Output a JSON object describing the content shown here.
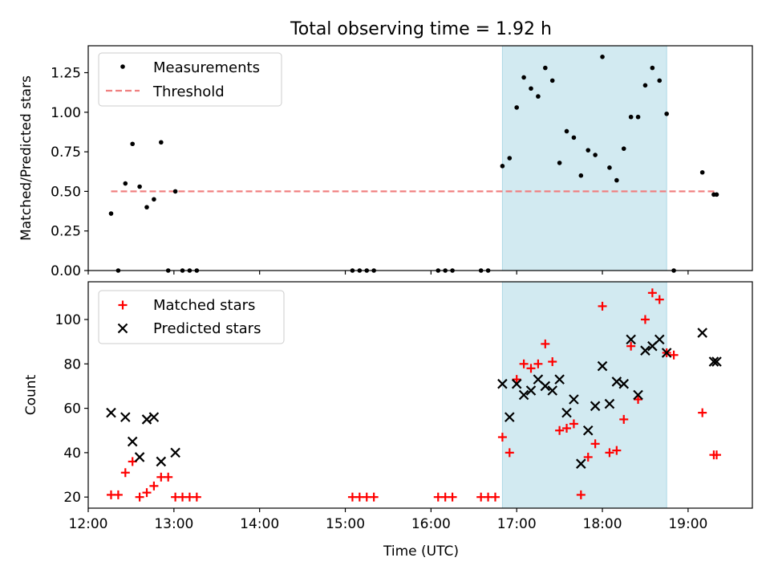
{
  "chart_data": [
    {
      "type": "scatter",
      "title": "Total observing time = 1.92 h",
      "xlabel": "",
      "ylabel": "Matched/Predicted stars",
      "xlim": [
        "12:00",
        "19:45"
      ],
      "ylim": [
        0,
        1.42
      ],
      "yticks": [
        "0.00",
        "0.25",
        "0.50",
        "0.75",
        "1.00",
        "1.25"
      ],
      "grid": false,
      "legend": "top-left",
      "shaded_span": {
        "x_start": "16:50",
        "x_end": "18:45",
        "color": "#add8e6"
      },
      "series": [
        {
          "name": "Measurements",
          "marker": "dot",
          "color": "#000000",
          "points": [
            [
              "12:16",
              0.36
            ],
            [
              "12:21",
              0.0
            ],
            [
              "12:26",
              0.55
            ],
            [
              "12:31",
              0.8
            ],
            [
              "12:36",
              0.53
            ],
            [
              "12:41",
              0.4
            ],
            [
              "12:46",
              0.45
            ],
            [
              "12:51",
              0.81
            ],
            [
              "12:56",
              0.0
            ],
            [
              "13:01",
              0.5
            ],
            [
              "13:06",
              0.0
            ],
            [
              "13:11",
              0.0
            ],
            [
              "13:16",
              0.0
            ],
            [
              "15:05",
              0.0
            ],
            [
              "15:10",
              0.0
            ],
            [
              "15:15",
              0.0
            ],
            [
              "15:20",
              0.0
            ],
            [
              "16:05",
              0.0
            ],
            [
              "16:10",
              0.0
            ],
            [
              "16:15",
              0.0
            ],
            [
              "16:35",
              0.0
            ],
            [
              "16:40",
              0.0
            ],
            [
              "16:50",
              0.66
            ],
            [
              "16:55",
              0.71
            ],
            [
              "17:00",
              1.03
            ],
            [
              "17:05",
              1.22
            ],
            [
              "17:10",
              1.15
            ],
            [
              "17:15",
              1.1
            ],
            [
              "17:20",
              1.28
            ],
            [
              "17:25",
              1.2
            ],
            [
              "17:30",
              0.68
            ],
            [
              "17:35",
              0.88
            ],
            [
              "17:40",
              0.84
            ],
            [
              "17:45",
              0.6
            ],
            [
              "17:50",
              0.76
            ],
            [
              "17:55",
              0.73
            ],
            [
              "18:00",
              1.35
            ],
            [
              "18:05",
              0.65
            ],
            [
              "18:10",
              0.57
            ],
            [
              "18:15",
              0.77
            ],
            [
              "18:20",
              0.97
            ],
            [
              "18:25",
              0.97
            ],
            [
              "18:30",
              1.17
            ],
            [
              "18:35",
              1.28
            ],
            [
              "18:40",
              1.2
            ],
            [
              "18:45",
              0.99
            ],
            [
              "18:50",
              0.0
            ],
            [
              "19:10",
              0.62
            ],
            [
              "19:18",
              0.48
            ],
            [
              "19:20",
              0.48
            ]
          ]
        },
        {
          "name": "Threshold",
          "marker": "dashed-line",
          "color": "#f08080",
          "points": [
            [
              "12:16",
              0.5
            ],
            [
              "19:20",
              0.5
            ]
          ]
        }
      ]
    },
    {
      "type": "scatter",
      "title": "",
      "xlabel": "Time (UTC)",
      "ylabel": "Count",
      "xlim": [
        "12:00",
        "19:45"
      ],
      "ylim": [
        15,
        117
      ],
      "yticks": [
        "20",
        "40",
        "60",
        "80",
        "100"
      ],
      "xticks": [
        "12:00",
        "13:00",
        "14:00",
        "15:00",
        "16:00",
        "17:00",
        "18:00",
        "19:00"
      ],
      "grid": false,
      "legend": "top-left",
      "shaded_span": {
        "x_start": "16:50",
        "x_end": "18:45",
        "color": "#add8e6"
      },
      "series": [
        {
          "name": "Matched stars",
          "marker": "plus",
          "color": "#ff0000",
          "points": [
            [
              "12:16",
              21
            ],
            [
              "12:21",
              21
            ],
            [
              "12:26",
              31
            ],
            [
              "12:31",
              36
            ],
            [
              "12:36",
              20
            ],
            [
              "12:41",
              22
            ],
            [
              "12:46",
              25
            ],
            [
              "12:51",
              29
            ],
            [
              "12:56",
              29
            ],
            [
              "13:01",
              20
            ],
            [
              "13:06",
              20
            ],
            [
              "13:11",
              20
            ],
            [
              "13:16",
              20
            ],
            [
              "15:05",
              20
            ],
            [
              "15:10",
              20
            ],
            [
              "15:15",
              20
            ],
            [
              "15:20",
              20
            ],
            [
              "16:05",
              20
            ],
            [
              "16:10",
              20
            ],
            [
              "16:15",
              20
            ],
            [
              "16:35",
              20
            ],
            [
              "16:40",
              20
            ],
            [
              "16:45",
              20
            ],
            [
              "16:50",
              47
            ],
            [
              "16:55",
              40
            ],
            [
              "17:00",
              73
            ],
            [
              "17:05",
              80
            ],
            [
              "17:10",
              78
            ],
            [
              "17:15",
              80
            ],
            [
              "17:20",
              89
            ],
            [
              "17:25",
              81
            ],
            [
              "17:30",
              50
            ],
            [
              "17:35",
              51
            ],
            [
              "17:40",
              53
            ],
            [
              "17:45",
              21
            ],
            [
              "17:50",
              38
            ],
            [
              "17:55",
              44
            ],
            [
              "18:00",
              106
            ],
            [
              "18:05",
              40
            ],
            [
              "18:10",
              41
            ],
            [
              "18:15",
              55
            ],
            [
              "18:20",
              88
            ],
            [
              "18:25",
              64
            ],
            [
              "18:30",
              100
            ],
            [
              "18:35",
              112
            ],
            [
              "18:40",
              109
            ],
            [
              "18:45",
              85
            ],
            [
              "18:50",
              84
            ],
            [
              "19:10",
              58
            ],
            [
              "19:18",
              39
            ],
            [
              "19:20",
              39
            ]
          ]
        },
        {
          "name": "Predicted stars",
          "marker": "x",
          "color": "#000000",
          "points": [
            [
              "12:16",
              58
            ],
            [
              "12:26",
              56
            ],
            [
              "12:31",
              45
            ],
            [
              "12:36",
              38
            ],
            [
              "12:41",
              55
            ],
            [
              "12:46",
              56
            ],
            [
              "12:51",
              36
            ],
            [
              "13:01",
              40
            ],
            [
              "16:50",
              71
            ],
            [
              "16:55",
              56
            ],
            [
              "17:00",
              71
            ],
            [
              "17:05",
              66
            ],
            [
              "17:10",
              68
            ],
            [
              "17:15",
              73
            ],
            [
              "17:20",
              70
            ],
            [
              "17:25",
              68
            ],
            [
              "17:30",
              73
            ],
            [
              "17:35",
              58
            ],
            [
              "17:40",
              64
            ],
            [
              "17:45",
              35
            ],
            [
              "17:50",
              50
            ],
            [
              "17:55",
              61
            ],
            [
              "18:00",
              79
            ],
            [
              "18:05",
              62
            ],
            [
              "18:10",
              72
            ],
            [
              "18:15",
              71
            ],
            [
              "18:20",
              91
            ],
            [
              "18:25",
              66
            ],
            [
              "18:30",
              86
            ],
            [
              "18:35",
              88
            ],
            [
              "18:40",
              91
            ],
            [
              "18:45",
              85
            ],
            [
              "19:10",
              94
            ],
            [
              "19:18",
              81
            ],
            [
              "19:20",
              81
            ]
          ]
        }
      ]
    }
  ]
}
